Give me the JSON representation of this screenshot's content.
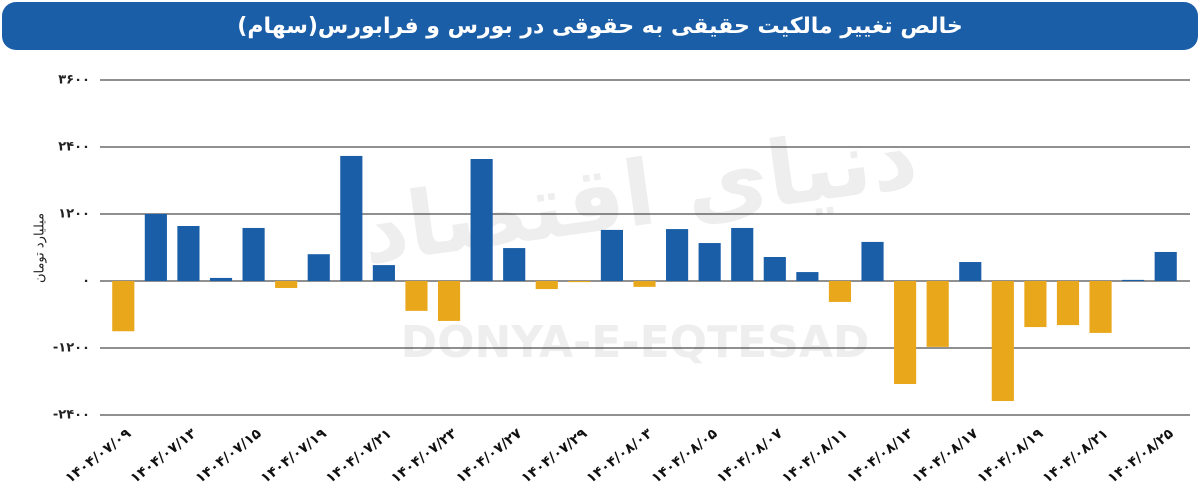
{
  "chart_data": {
    "type": "bar",
    "title": "خالص تغییر مالکیت حقیقی به حقوقی در بورس و فرابورس(سهام)",
    "y_label": "میلیارد تومان",
    "watermark": [
      "دنیای اقتصاد",
      "DONYA-E-EQTESAD"
    ],
    "categories": [
      "۱۴۰۴/۰۷/۰۹",
      null,
      "۱۴۰۴/۰۷/۱۳",
      null,
      "۱۴۰۴/۰۷/۱۵",
      null,
      "۱۴۰۴/۰۷/۱۹",
      null,
      "۱۴۰۴/۰۷/۲۱",
      null,
      "۱۴۰۴/۰۷/۲۳",
      null,
      "۱۴۰۴/۰۷/۲۷",
      null,
      "۱۴۰۴/۰۷/۲۹",
      null,
      "۱۴۰۴/۰۸/۰۳",
      null,
      "۱۴۰۴/۰۸/۰۵",
      null,
      "۱۴۰۴/۰۸/۰۷",
      null,
      "۱۴۰۴/۰۸/۱۱",
      null,
      "۱۴۰۴/۰۸/۱۳",
      null,
      "۱۴۰۴/۰۸/۱۷",
      null,
      "۱۴۰۴/۰۸/۱۹",
      null,
      "۱۴۰۴/۰۸/۲۱",
      null,
      "۱۴۰۴/۰۸/۲۵"
    ],
    "values": [
      -900,
      1200,
      985,
      55,
      950,
      -125,
      480,
      2240,
      285,
      -535,
      -715,
      2185,
      590,
      -145,
      -20,
      915,
      -105,
      930,
      680,
      950,
      430,
      160,
      -375,
      700,
      -1845,
      -1180,
      340,
      -2150,
      -825,
      -790,
      -930,
      20,
      520
    ],
    "positive_color": "#1b5ea8",
    "negative_color": "#e9a81b",
    "ylim": [
      -2400,
      3600
    ],
    "yticks": [
      {
        "value": -2400,
        "label": "-۲۴۰۰"
      },
      {
        "value": -1200,
        "label": "-۱۲۰۰"
      },
      {
        "value": 0,
        "label": "۰"
      },
      {
        "value": 1200,
        "label": "۱۲۰۰"
      },
      {
        "value": 2400,
        "label": "۲۴۰۰"
      },
      {
        "value": 3600,
        "label": "۳۶۰۰"
      }
    ],
    "grid": true
  }
}
